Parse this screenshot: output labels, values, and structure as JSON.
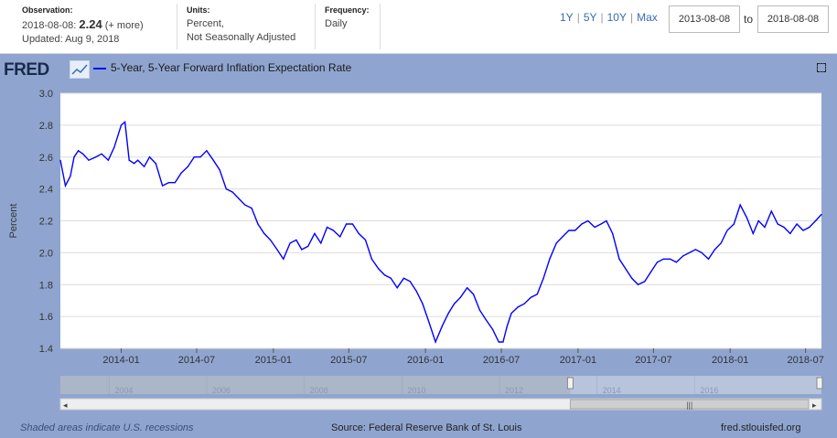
{
  "header": {
    "observation_label": "Observation:",
    "observation_date": "2018-08-08:",
    "observation_value": "2.24",
    "observation_more": "(+ more)",
    "updated": "Updated: Aug 9, 2018",
    "units_label": "Units:",
    "units_line1": "Percent,",
    "units_line2": "Not Seasonally Adjusted",
    "frequency_label": "Frequency:",
    "frequency_value": "Daily"
  },
  "range_buttons": [
    "1Y",
    "5Y",
    "10Y",
    "Max"
  ],
  "date_from": "2013-08-08",
  "date_to_label": "to",
  "date_to": "2018-08-08",
  "logo_text": "FRED",
  "series_title": "5-Year, 5-Year Forward Inflation Expectation Rate",
  "footer": {
    "left": "Shaded areas indicate U.S. recessions",
    "center": "Source: Federal Reserve Bank of St. Louis",
    "right": "fred.stlouisfed.org"
  },
  "navigator_labels": [
    "2004",
    "2006",
    "2008",
    "2010",
    "2012",
    "2014",
    "2016"
  ],
  "navigator_start_year": 2003,
  "navigator_end_year": 2018.6,
  "colors": {
    "line": "#0000ff",
    "panel": "#8fa5cf",
    "link": "#3a6ab0"
  },
  "chart_data": {
    "type": "line",
    "title": "5-Year, 5-Year Forward Inflation Expectation Rate",
    "ylabel": "Percent",
    "xlabel": "",
    "ylim": [
      1.4,
      3.0
    ],
    "yticks": [
      "1.4",
      "1.6",
      "1.8",
      "2.0",
      "2.2",
      "2.4",
      "2.6",
      "2.8",
      "3.0"
    ],
    "xlim": [
      "2013-08-08",
      "2018-08-08"
    ],
    "xticks": [
      "2014-01",
      "2014-07",
      "2015-01",
      "2015-07",
      "2016-01",
      "2016-07",
      "2017-01",
      "2017-07",
      "2018-01",
      "2018-07"
    ],
    "grid": true,
    "series": [
      {
        "name": "5-Year, 5-Year Forward Inflation Expectation Rate",
        "x": [
          "2013-08-08",
          "2013-08-20",
          "2013-09-01",
          "2013-09-10",
          "2013-09-20",
          "2013-10-01",
          "2013-10-15",
          "2013-11-01",
          "2013-11-15",
          "2013-12-01",
          "2013-12-15",
          "2014-01-01",
          "2014-01-10",
          "2014-01-20",
          "2014-02-01",
          "2014-02-10",
          "2014-02-25",
          "2014-03-10",
          "2014-03-25",
          "2014-04-10",
          "2014-04-25",
          "2014-05-10",
          "2014-05-25",
          "2014-06-10",
          "2014-06-25",
          "2014-07-10",
          "2014-07-25",
          "2014-08-10",
          "2014-08-25",
          "2014-09-10",
          "2014-09-25",
          "2014-10-10",
          "2014-10-25",
          "2014-11-10",
          "2014-11-25",
          "2014-12-10",
          "2014-12-25",
          "2015-01-10",
          "2015-01-25",
          "2015-02-10",
          "2015-02-25",
          "2015-03-10",
          "2015-03-25",
          "2015-04-10",
          "2015-04-25",
          "2015-05-10",
          "2015-05-25",
          "2015-06-10",
          "2015-06-25",
          "2015-07-10",
          "2015-07-25",
          "2015-08-10",
          "2015-08-25",
          "2015-09-10",
          "2015-09-25",
          "2015-10-10",
          "2015-10-25",
          "2015-11-10",
          "2015-11-25",
          "2015-12-10",
          "2015-12-25",
          "2016-01-10",
          "2016-01-25",
          "2016-02-10",
          "2016-02-25",
          "2016-03-10",
          "2016-03-25",
          "2016-04-10",
          "2016-04-25",
          "2016-05-10",
          "2016-05-25",
          "2016-06-10",
          "2016-06-25",
          "2016-07-05",
          "2016-07-15",
          "2016-07-25",
          "2016-08-10",
          "2016-08-25",
          "2016-09-10",
          "2016-09-25",
          "2016-10-10",
          "2016-10-25",
          "2016-11-10",
          "2016-11-25",
          "2016-12-10",
          "2016-12-25",
          "2017-01-10",
          "2017-01-25",
          "2017-02-10",
          "2017-02-25",
          "2017-03-10",
          "2017-03-25",
          "2017-04-10",
          "2017-04-25",
          "2017-05-10",
          "2017-05-25",
          "2017-06-10",
          "2017-06-25",
          "2017-07-10",
          "2017-07-25",
          "2017-08-10",
          "2017-08-25",
          "2017-09-10",
          "2017-09-25",
          "2017-10-10",
          "2017-10-25",
          "2017-11-10",
          "2017-11-25",
          "2017-12-10",
          "2017-12-25",
          "2018-01-10",
          "2018-01-25",
          "2018-02-10",
          "2018-02-25",
          "2018-03-10",
          "2018-03-25",
          "2018-04-10",
          "2018-04-25",
          "2018-05-10",
          "2018-05-25",
          "2018-06-10",
          "2018-06-25",
          "2018-07-10",
          "2018-07-25",
          "2018-08-08"
        ],
        "values": [
          2.58,
          2.42,
          2.48,
          2.6,
          2.64,
          2.62,
          2.58,
          2.6,
          2.62,
          2.58,
          2.66,
          2.8,
          2.82,
          2.58,
          2.56,
          2.58,
          2.54,
          2.6,
          2.56,
          2.42,
          2.44,
          2.44,
          2.5,
          2.54,
          2.6,
          2.6,
          2.64,
          2.58,
          2.52,
          2.4,
          2.38,
          2.34,
          2.3,
          2.28,
          2.18,
          2.12,
          2.08,
          2.02,
          1.96,
          2.06,
          2.08,
          2.02,
          2.04,
          2.12,
          2.06,
          2.16,
          2.14,
          2.1,
          2.18,
          2.18,
          2.12,
          2.08,
          1.96,
          1.9,
          1.86,
          1.84,
          1.78,
          1.84,
          1.82,
          1.76,
          1.68,
          1.56,
          1.44,
          1.54,
          1.62,
          1.68,
          1.72,
          1.78,
          1.74,
          1.64,
          1.58,
          1.52,
          1.44,
          1.44,
          1.54,
          1.62,
          1.66,
          1.68,
          1.72,
          1.74,
          1.84,
          1.96,
          2.06,
          2.1,
          2.14,
          2.14,
          2.18,
          2.2,
          2.16,
          2.18,
          2.2,
          2.12,
          1.96,
          1.9,
          1.84,
          1.8,
          1.82,
          1.88,
          1.94,
          1.96,
          1.96,
          1.94,
          1.98,
          2.0,
          2.02,
          2.0,
          1.96,
          2.02,
          2.06,
          2.14,
          2.18,
          2.3,
          2.22,
          2.12,
          2.2,
          2.16,
          2.26,
          2.18,
          2.16,
          2.12,
          2.18,
          2.14,
          2.16,
          2.2,
          2.24
        ]
      }
    ]
  }
}
